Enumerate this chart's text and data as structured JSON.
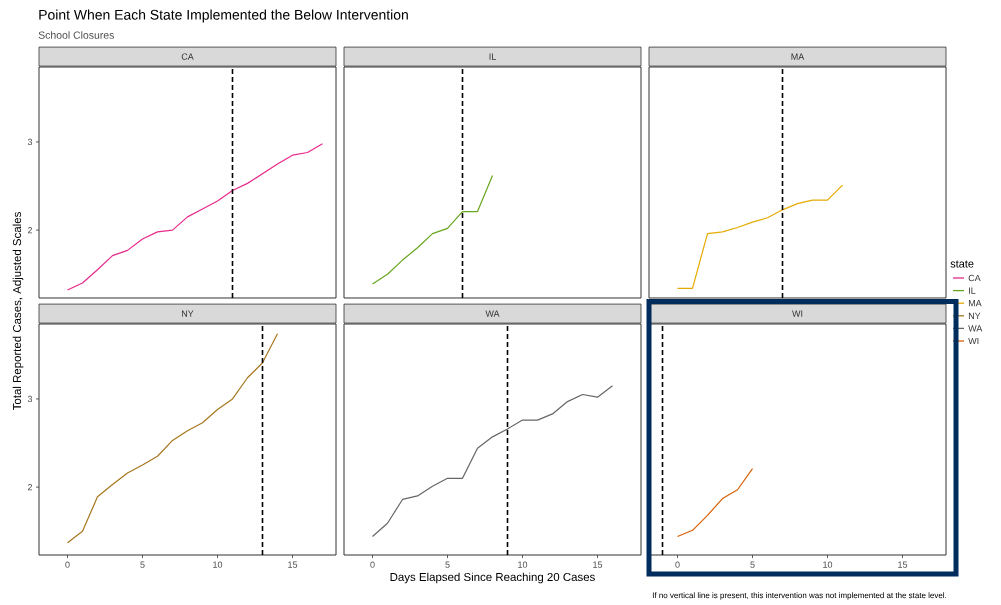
{
  "chart_data": [
    {
      "type": "line",
      "title": "CA",
      "annotations": [
        "Point When Each State Implemented the Below Intervention",
        "School Closures",
        "If no vertical line is present, this intervention was not implemented at the state level."
      ],
      "ylabel": "Total Reported Cases, Adjusted Scales",
      "legend_title": "state",
      "legend": "right",
      "tick_labels": "y",
      "xlim": [
        -1.9,
        17.9
      ],
      "ylim": [
        1.23,
        3.85
      ],
      "xticks": [
        0,
        5,
        10,
        15
      ],
      "yticks": [
        2,
        3
      ],
      "x": [
        0,
        1,
        2,
        3,
        4,
        5,
        6,
        7,
        8,
        9,
        10,
        11,
        12,
        13,
        14,
        15,
        16,
        17
      ],
      "series": [
        {
          "name": "CA",
          "color": "#e7298a",
          "values": [
            1.32,
            1.4,
            1.55,
            1.71,
            1.77,
            1.9,
            1.98,
            2.0,
            2.15,
            2.24,
            2.33,
            2.45,
            2.53,
            2.64,
            2.75,
            2.85,
            2.88,
            2.98
          ]
        }
      ],
      "ref_lines": [
        {
          "axis": "x",
          "value": 11,
          "color": "#000000",
          "line_style": "dashed"
        }
      ]
    },
    {
      "type": "line",
      "title": "IL",
      "legend": "right",
      "tick_labels": false,
      "xlim": [
        -1.9,
        17.9
      ],
      "ylim": [
        1.23,
        3.85
      ],
      "xticks": [
        0,
        5,
        10,
        15
      ],
      "yticks": [
        2,
        3
      ],
      "x": [
        0,
        1,
        2,
        3,
        4,
        5,
        6,
        7,
        8
      ],
      "series": [
        {
          "name": "IL",
          "color": "#66a61e",
          "values": [
            1.39,
            1.5,
            1.66,
            1.8,
            1.96,
            2.02,
            2.21,
            2.21,
            2.62
          ]
        }
      ],
      "ref_lines": [
        {
          "axis": "x",
          "value": 6,
          "color": "#000000",
          "line_style": "dashed"
        }
      ]
    },
    {
      "type": "line",
      "title": "MA",
      "legend": "right",
      "tick_labels": false,
      "xlim": [
        -1.9,
        17.9
      ],
      "ylim": [
        1.23,
        3.85
      ],
      "xticks": [
        0,
        5,
        10,
        15
      ],
      "yticks": [
        2,
        3
      ],
      "x": [
        0,
        1,
        2,
        3,
        4,
        5,
        6,
        7,
        8,
        9,
        10,
        11
      ],
      "series": [
        {
          "name": "MA",
          "color": "#e6ab02",
          "values": [
            1.34,
            1.34,
            1.96,
            1.98,
            2.03,
            2.09,
            2.14,
            2.23,
            2.3,
            2.34,
            2.34,
            2.51
          ]
        }
      ],
      "ref_lines": [
        {
          "axis": "x",
          "value": 7,
          "color": "#000000",
          "line_style": "dashed"
        }
      ]
    },
    {
      "type": "line",
      "title": "NY",
      "legend": "right",
      "xlim": [
        -1.9,
        17.9
      ],
      "ylim": [
        1.23,
        3.85
      ],
      "xticks": [
        0,
        5,
        10,
        15
      ],
      "yticks": [
        2,
        3
      ],
      "x": [
        0,
        1,
        2,
        3,
        4,
        5,
        6,
        7,
        8,
        9,
        10,
        11,
        12,
        13,
        14
      ],
      "series": [
        {
          "name": "NY",
          "color": "#a6761d",
          "values": [
            1.37,
            1.5,
            1.89,
            2.03,
            2.16,
            2.25,
            2.35,
            2.53,
            2.64,
            2.73,
            2.88,
            3.0,
            3.24,
            3.41,
            3.74
          ]
        }
      ],
      "ref_lines": [
        {
          "axis": "x",
          "value": 13,
          "color": "#000000",
          "line_style": "dashed"
        }
      ]
    },
    {
      "type": "line",
      "title": "WA",
      "xlabel": "Days Elapsed Since Reaching 20 Cases",
      "legend": "right",
      "tick_labels": "x",
      "xlim": [
        -1.9,
        17.9
      ],
      "ylim": [
        1.23,
        3.85
      ],
      "xticks": [
        0,
        5,
        10,
        15
      ],
      "yticks": [
        2,
        3
      ],
      "x": [
        0,
        1,
        2,
        3,
        4,
        5,
        6,
        7,
        8,
        9,
        10,
        11,
        12,
        13,
        14,
        15,
        16
      ],
      "series": [
        {
          "name": "WA",
          "color": "#666666",
          "values": [
            1.44,
            1.59,
            1.86,
            1.9,
            2.01,
            2.1,
            2.1,
            2.44,
            2.57,
            2.66,
            2.76,
            2.76,
            2.83,
            2.97,
            3.05,
            3.02,
            3.15
          ]
        }
      ],
      "ref_lines": [
        {
          "axis": "x",
          "value": 9,
          "color": "#000000",
          "line_style": "dashed"
        }
      ]
    },
    {
      "type": "line",
      "title": "WI",
      "legend": "right",
      "tick_labels": "x",
      "xlim": [
        -1.9,
        17.9
      ],
      "ylim": [
        1.23,
        3.85
      ],
      "xticks": [
        0,
        5,
        10,
        15
      ],
      "yticks": [
        2,
        3
      ],
      "x": [
        0,
        1,
        2,
        3,
        4,
        5
      ],
      "series": [
        {
          "name": "WI",
          "color": "#d95f02",
          "values": [
            1.44,
            1.51,
            1.68,
            1.87,
            1.97,
            2.21
          ]
        }
      ],
      "ref_lines": [
        {
          "axis": "x",
          "value": -1,
          "color": "#000000",
          "line_style": "dashed"
        }
      ]
    }
  ]
}
